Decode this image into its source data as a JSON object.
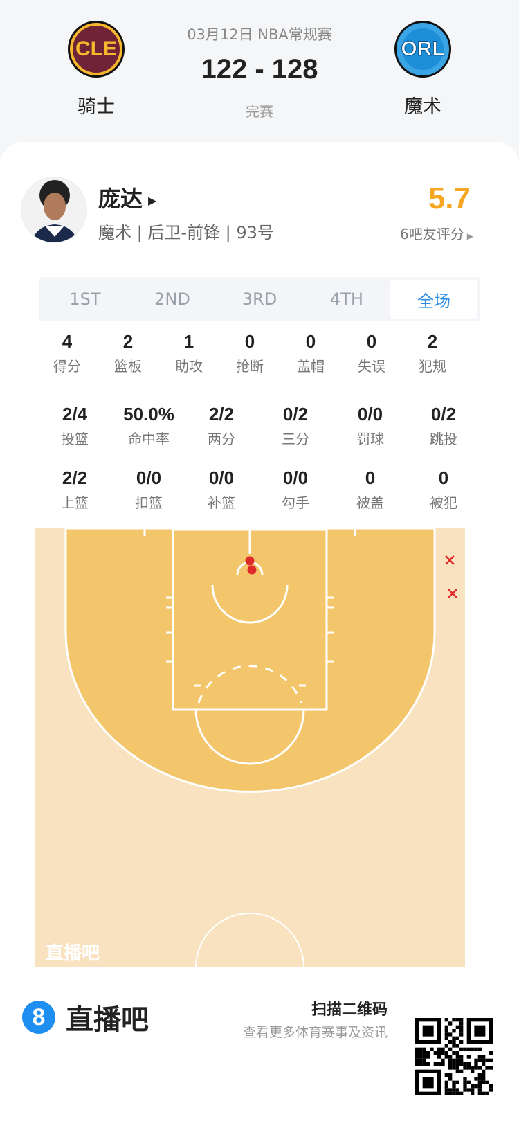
{
  "match": {
    "date_league": "03月12日 NBA常规赛",
    "score": "122 - 128",
    "status": "完赛",
    "home": {
      "abbr": "CLE",
      "name": "骑士"
    },
    "away": {
      "abbr": "ORL",
      "name": "魔术"
    }
  },
  "player": {
    "name": "庞达",
    "info": "魔术 | 后卫-前锋 | 93号",
    "rating": "5.7",
    "rating_label": "6吧友评分",
    "rating_color": "#f5a623"
  },
  "tabs": [
    {
      "label": "1ST"
    },
    {
      "label": "2ND"
    },
    {
      "label": "3RD"
    },
    {
      "label": "4TH"
    },
    {
      "label": "全场",
      "active": true
    }
  ],
  "stats_row1": [
    {
      "v": "4",
      "l": "得分"
    },
    {
      "v": "2",
      "l": "篮板"
    },
    {
      "v": "1",
      "l": "助攻"
    },
    {
      "v": "0",
      "l": "抢断"
    },
    {
      "v": "0",
      "l": "盖帽"
    },
    {
      "v": "0",
      "l": "失误"
    },
    {
      "v": "2",
      "l": "犯规"
    }
  ],
  "stats_row2": [
    {
      "v": "2/4",
      "l": "投篮"
    },
    {
      "v": "50.0%",
      "l": "命中率"
    },
    {
      "v": "2/2",
      "l": "两分"
    },
    {
      "v": "0/2",
      "l": "三分"
    },
    {
      "v": "0/0",
      "l": "罚球"
    },
    {
      "v": "0/2",
      "l": "跳投"
    }
  ],
  "stats_row3": [
    {
      "v": "2/2",
      "l": "上篮"
    },
    {
      "v": "0/0",
      "l": "扣篮"
    },
    {
      "v": "0/0",
      "l": "补篮"
    },
    {
      "v": "0/0",
      "l": "勾手"
    },
    {
      "v": "0",
      "l": "被盖"
    },
    {
      "v": "0",
      "l": "被犯"
    }
  ],
  "shot_chart": {
    "watermark": "直播吧",
    "made_color": "#e02a2a",
    "missed_color": "#e02a2a",
    "shots": [
      {
        "result": "made"
      },
      {
        "result": "made"
      },
      {
        "result": "missed"
      },
      {
        "result": "missed"
      }
    ]
  },
  "footer": {
    "brand": "直播吧",
    "brand_mark": "8",
    "qr_title": "扫描二维码",
    "qr_sub": "查看更多体育赛事及资讯"
  }
}
